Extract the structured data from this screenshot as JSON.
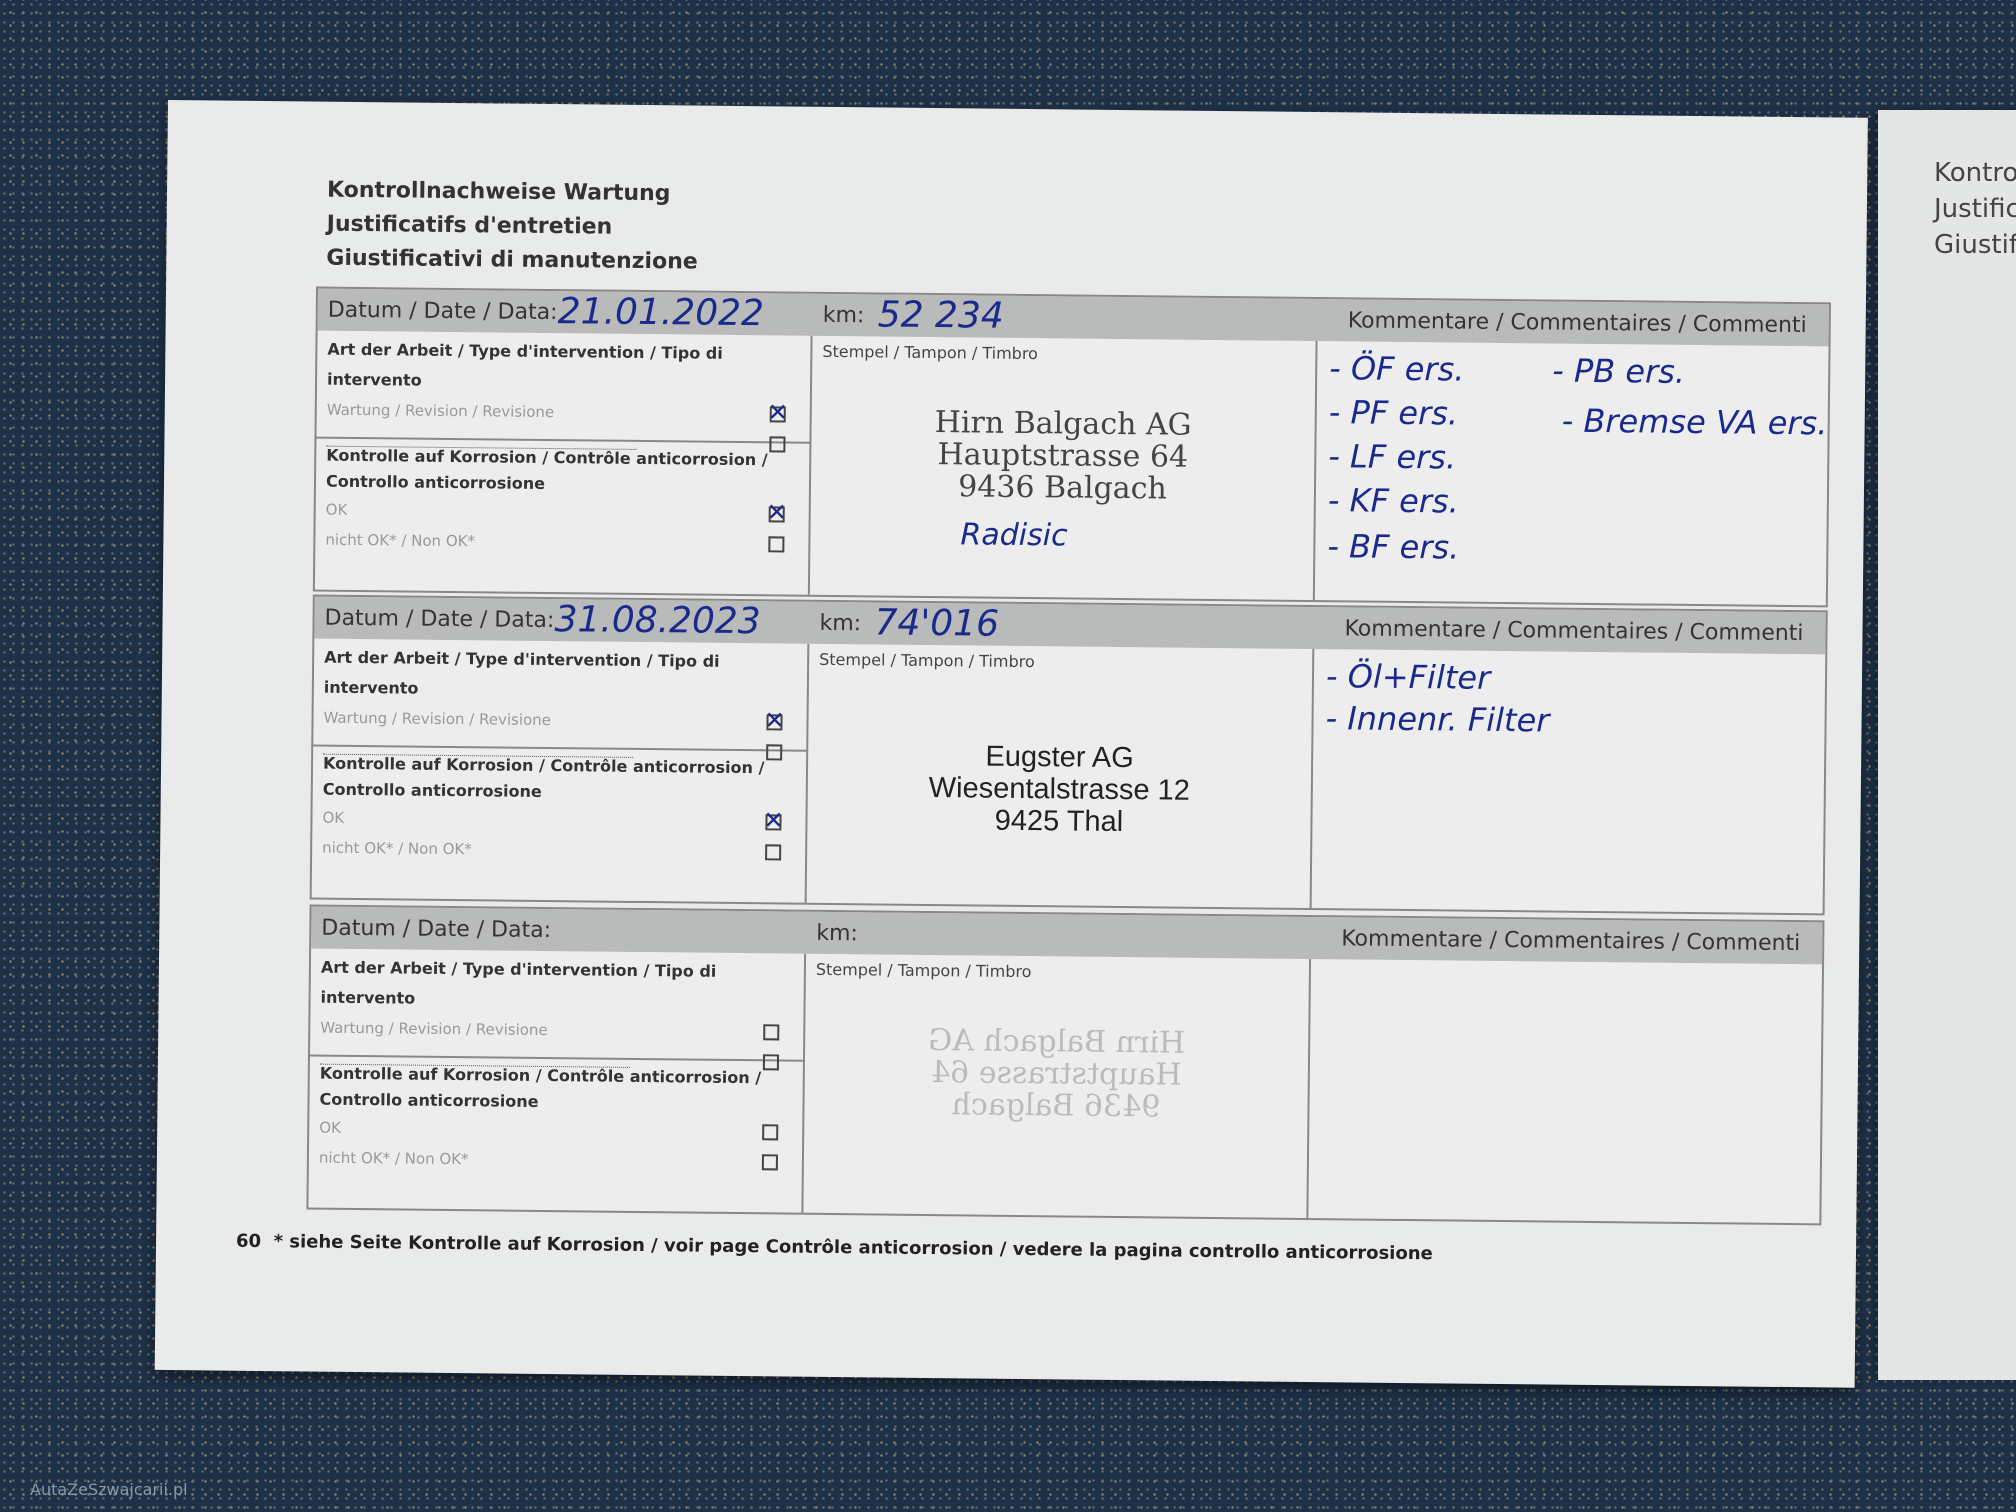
{
  "titles": [
    "Kontrollnachweise Wartung",
    "Justificatifs d'entretien",
    "Giustificativi di manutenzione"
  ],
  "labels": {
    "date": "Datum / Date / Data:",
    "km": "km:",
    "comments": "Kommentare / Commentaires / Commenti",
    "work_type": "Art der Arbeit / Type d'intervention / Tipo di intervento",
    "service": "Wartung / Revision / Revisione",
    "corrosion_1": "Kontrolle auf Korrosion / Contrôle anticorrosion /",
    "corrosion_2": "Controllo anticorrosione",
    "ok": "OK",
    "not_ok": "nicht OK* / Non OK*",
    "stamp": "Stempel / Tampon / Timbro"
  },
  "entries": [
    {
      "date": "21.01.2022",
      "km": "52 234",
      "service_checked": true,
      "ok_checked": true,
      "stamp": [
        "Hirn Balgach AG",
        "Hauptstrasse 64",
        "9436 Balgach"
      ],
      "signature": "Radisic",
      "comments": [
        "- ÖF ers.",
        "- PF ers.",
        "- LF ers.",
        "- KF ers.",
        "- BF ers.",
        "- PB ers.",
        "- Bremse VA ers."
      ]
    },
    {
      "date": "31.08.2023",
      "km": "74'016",
      "service_checked": true,
      "ok_checked": true,
      "stamp": [
        "Eugster AG",
        "Wiesentalstrasse 12",
        "9425 Thal"
      ],
      "comments": [
        "- Öl+Filter",
        "- Innenr. Filter"
      ]
    },
    {
      "date": "",
      "km": "",
      "service_checked": false,
      "ok_checked": false,
      "stamp_ghost": [
        "Hirn Balgach AG",
        "Hauptstrasse 64",
        "9436 Balgach"
      ],
      "comments": []
    }
  ],
  "footer": {
    "page": "60",
    "note": "* siehe Seite Kontrolle auf Korrosion / voir page Contrôle anticorrosion / vedere la pagina controllo anticorrosione"
  },
  "right_page": [
    "Kontro",
    "Justific",
    "Giustif"
  ],
  "watermark": "AutaZeSzwajcarii.pl",
  "colors": {
    "ink": "#1a2a8a",
    "header": "#b9baba"
  }
}
